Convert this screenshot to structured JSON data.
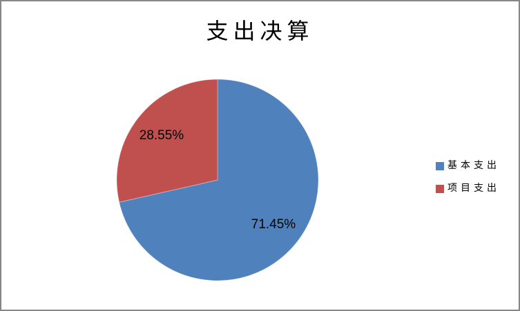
{
  "window": {
    "border_color": "#868686",
    "background_color": "#FFFFFF"
  },
  "chart_data": {
    "type": "pie",
    "title": "支出决算",
    "slices": [
      {
        "label": "基本支出",
        "value": 71.45,
        "percent_label": "71.45%",
        "color": "#4F81BD"
      },
      {
        "label": "项目支出",
        "value": 28.55,
        "percent_label": "28.55%",
        "color": "#C0504D"
      }
    ],
    "legend_position": "right",
    "start_angle": "top",
    "direction": "clockwise",
    "label_style": "percent-inside",
    "grid": "off"
  }
}
